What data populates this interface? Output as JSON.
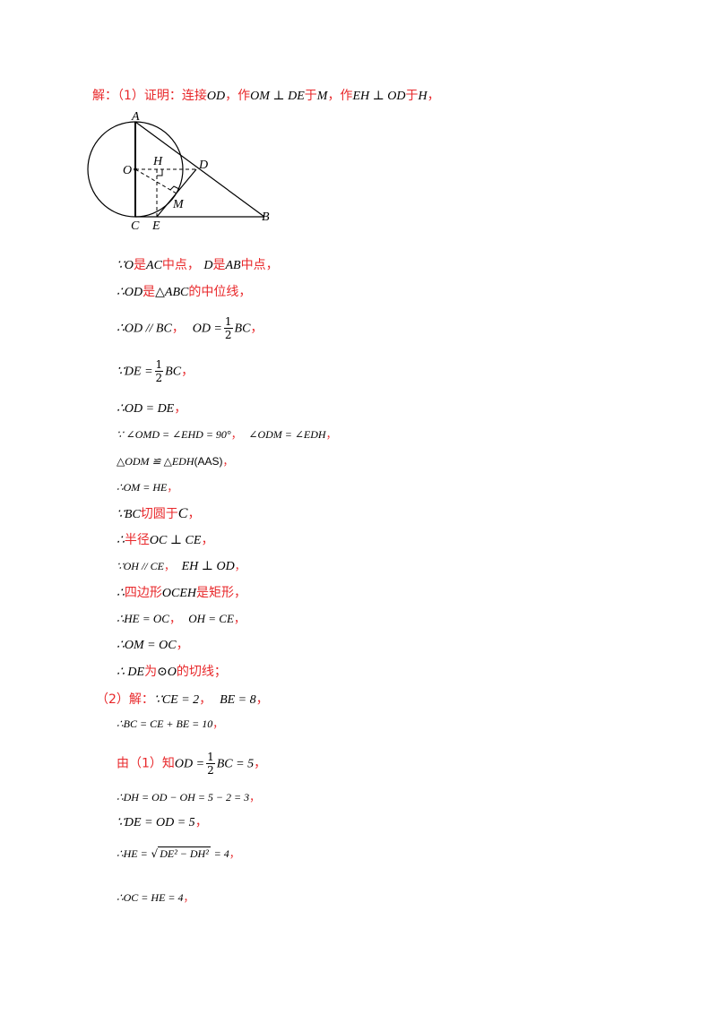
{
  "header": {
    "label": "解：（1）证明：连接",
    "od": "OD",
    "zuo1": "，作",
    "om_de": "OM ⊥ DE",
    "yu1": "于",
    "m": "M",
    "zuo2": "，作",
    "eh_od": "EH ⊥ OD",
    "yu2": "于",
    "h": "H",
    "end": "，"
  },
  "figure": {
    "labels": {
      "A": "A",
      "O": "O",
      "H": "H",
      "D": "D",
      "M": "M",
      "C": "C",
      "E": "E",
      "B": "B"
    }
  },
  "lines": {
    "l1": {
      "a": "∵O",
      "b": "是",
      "c": "AC",
      "d": "中点，",
      "e": "D",
      "f": "是",
      "g": "AB",
      "h": "中点，"
    },
    "l2": {
      "a": "∴OD",
      "b": "是",
      "c": "△ABC",
      "d": "的中位线，"
    },
    "l3": {
      "a": "∴OD // BC",
      "b": "，",
      "c": "OD =",
      "num": "1",
      "den": "2",
      "d": "BC",
      "e": "，"
    },
    "l4": {
      "a": "∵DE =",
      "num": "1",
      "den": "2",
      "b": "BC",
      "c": "，"
    },
    "l5": {
      "a": "∴OD = DE",
      "b": "，"
    },
    "l6": {
      "a": "∵ ∠OMD = ∠EHD = 90°",
      "b": "，",
      "c": "∠ODM = ∠EDH",
      "d": "，"
    },
    "l7": {
      "a": "△ODM ≌ △EDH",
      "b": "(AAS)",
      "c": "，"
    },
    "l8": {
      "a": "∴OM = HE",
      "b": "，"
    },
    "l9": {
      "a": "∵BC",
      "b": "切圆于",
      "c": "C",
      "d": "，"
    },
    "l10": {
      "a": "∴",
      "b": "半径",
      "c": "OC ⊥ CE",
      "d": "，"
    },
    "l11": {
      "a": "∵OH // CE",
      "b": "，",
      "c": "EH ⊥ OD",
      "d": "，"
    },
    "l12": {
      "a": "∴",
      "b": "四边形",
      "c": "OCEH",
      "d": "是矩形，"
    },
    "l13": {
      "a": "∴HE = OC",
      "b": "，",
      "c": "OH = CE",
      "d": "，"
    },
    "l14": {
      "a": "∴OM = OC",
      "b": "，"
    },
    "l15": {
      "a": "∴ DE",
      "b": "为",
      "c": "⊙O",
      "d": "的切线；"
    }
  },
  "part2": {
    "label": "（2）解：",
    "a": "∵CE = 2",
    "b": "，",
    "c": "BE = 8",
    "d": "，",
    "l1": {
      "a": "∴BC = CE + BE = 10",
      "b": "，"
    },
    "l2": {
      "a": "由（1）知",
      "b": "OD =",
      "num": "1",
      "den": "2",
      "c": "BC = 5",
      "d": "，"
    },
    "l3": {
      "a": "∴DH = OD − OH = 5 − 2 = 3",
      "b": "，"
    },
    "l4": {
      "a": "∵DE = OD = 5",
      "b": "，"
    },
    "l5": {
      "a": "∴HE =",
      "rad": "DE² − DH²",
      "c": "= 4",
      "d": "，"
    },
    "l6": {
      "a": "∴OC = HE = 4",
      "b": "，"
    }
  }
}
